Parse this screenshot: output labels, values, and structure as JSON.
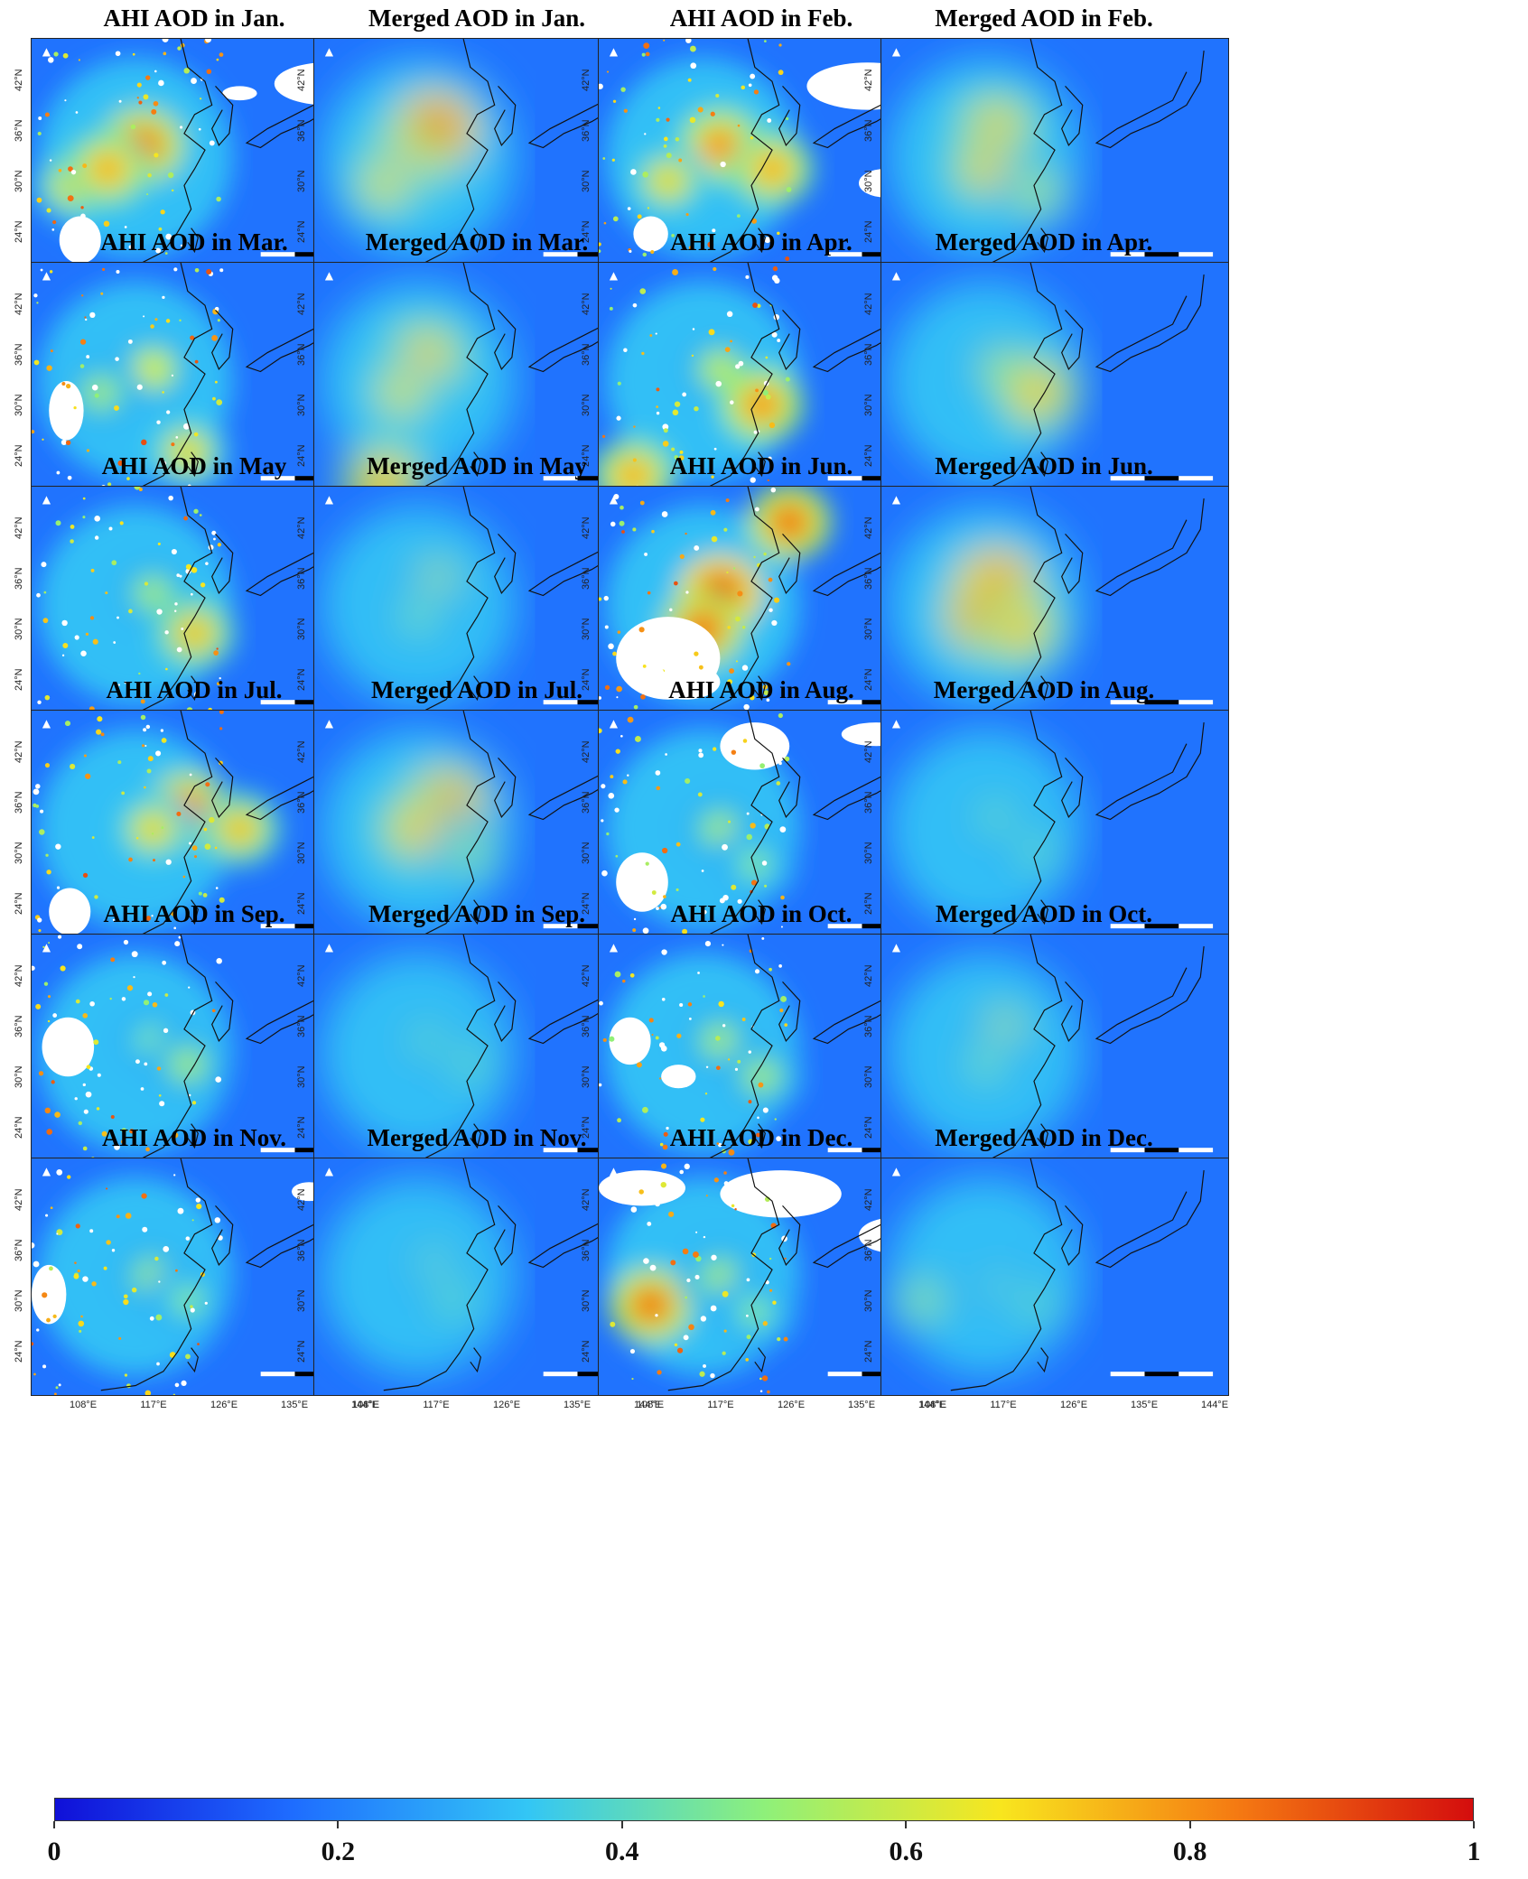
{
  "figure": {
    "panels": [
      {
        "title": "AHI AOD in Jan.",
        "kind": "ahi",
        "hot": [
          [
            0.32,
            0.45,
            0.9
          ],
          [
            0.12,
            0.62,
            0.7
          ],
          [
            0.22,
            0.55,
            0.8
          ]
        ],
        "clouds": [
          [
            0.7,
            0.1,
            0.3,
            0.18
          ],
          [
            0.08,
            0.75,
            0.12,
            0.2
          ],
          [
            0.55,
            0.2,
            0.1,
            0.06
          ]
        ]
      },
      {
        "title": "Merged AOD in Jan.",
        "kind": "merged",
        "hot": [
          [
            0.35,
            0.38,
            1.0
          ],
          [
            0.26,
            0.52,
            0.85
          ],
          [
            0.2,
            0.62,
            0.7
          ]
        ],
        "clouds": []
      },
      {
        "title": "AHI AOD in Feb.",
        "kind": "ahi",
        "hot": [
          [
            0.35,
            0.45,
            0.85
          ],
          [
            0.5,
            0.55,
            0.8
          ],
          [
            0.2,
            0.6,
            0.7
          ]
        ],
        "clouds": [
          [
            0.6,
            0.1,
            0.35,
            0.2
          ],
          [
            0.1,
            0.75,
            0.1,
            0.15
          ],
          [
            0.75,
            0.55,
            0.15,
            0.12
          ]
        ]
      },
      {
        "title": "Merged AOD in Feb.",
        "kind": "merged",
        "hot": [
          [
            0.33,
            0.38,
            0.8
          ],
          [
            0.3,
            0.55,
            0.75
          ],
          [
            0.45,
            0.65,
            0.6
          ]
        ],
        "clouds": []
      },
      {
        "title": "AHI AOD in Mar.",
        "kind": "ahi",
        "hot": [
          [
            0.35,
            0.45,
            0.65
          ],
          [
            0.45,
            0.8,
            0.7
          ],
          [
            0.2,
            0.55,
            0.55
          ]
        ],
        "clouds": [
          [
            0.05,
            0.5,
            0.1,
            0.25
          ],
          [
            0.85,
            0.15,
            0.1,
            0.1
          ]
        ]
      },
      {
        "title": "Merged AOD in Mar.",
        "kind": "merged",
        "hot": [
          [
            0.32,
            0.4,
            0.8
          ],
          [
            0.25,
            0.55,
            0.7
          ],
          [
            0.2,
            0.93,
            0.85
          ]
        ],
        "clouds": []
      },
      {
        "title": "AHI AOD in Apr.",
        "kind": "ahi",
        "hot": [
          [
            0.35,
            0.45,
            0.6
          ],
          [
            0.47,
            0.6,
            0.85
          ],
          [
            0.1,
            0.9,
            0.8
          ]
        ],
        "clouds": []
      },
      {
        "title": "Merged AOD in Apr.",
        "kind": "merged",
        "hot": [
          [
            0.35,
            0.45,
            0.6
          ],
          [
            0.45,
            0.55,
            0.8
          ]
        ],
        "clouds": []
      },
      {
        "title": "AHI AOD in May",
        "kind": "ahi",
        "hot": [
          [
            0.35,
            0.45,
            0.55
          ],
          [
            0.47,
            0.62,
            0.75
          ]
        ],
        "clouds": []
      },
      {
        "title": "Merged AOD in May",
        "kind": "merged",
        "hot": [
          [
            0.35,
            0.4,
            0.6
          ],
          [
            0.3,
            0.55,
            0.5
          ]
        ],
        "clouds": []
      },
      {
        "title": "AHI AOD in Jun.",
        "kind": "ahi",
        "hot": [
          [
            0.35,
            0.45,
            1.0
          ],
          [
            0.55,
            0.15,
            0.9
          ],
          [
            0.3,
            0.6,
            0.9
          ]
        ],
        "clouds": [
          [
            0.05,
            0.55,
            0.3,
            0.35
          ],
          [
            0.15,
            0.75,
            0.2,
            0.15
          ]
        ]
      },
      {
        "title": "Merged AOD in Jun.",
        "kind": "merged",
        "hot": [
          [
            0.33,
            0.42,
            1.0
          ],
          [
            0.3,
            0.55,
            0.95
          ],
          [
            0.4,
            0.6,
            0.8
          ]
        ],
        "clouds": []
      },
      {
        "title": "AHI AOD in Jul.",
        "kind": "ahi",
        "hot": [
          [
            0.45,
            0.42,
            0.9
          ],
          [
            0.35,
            0.5,
            0.7
          ],
          [
            0.6,
            0.5,
            0.75
          ]
        ],
        "clouds": [
          [
            0.05,
            0.75,
            0.12,
            0.2
          ]
        ]
      },
      {
        "title": "Merged AOD in Jul.",
        "kind": "merged",
        "hot": [
          [
            0.38,
            0.4,
            0.95
          ],
          [
            0.3,
            0.5,
            0.8
          ],
          [
            0.45,
            0.6,
            0.55
          ]
        ],
        "clouds": []
      },
      {
        "title": "AHI AOD in Aug.",
        "kind": "ahi",
        "hot": [
          [
            0.35,
            0.5,
            0.55
          ],
          [
            0.45,
            0.65,
            0.5
          ]
        ],
        "clouds": [
          [
            0.05,
            0.6,
            0.15,
            0.25
          ],
          [
            0.35,
            0.05,
            0.2,
            0.2
          ],
          [
            0.7,
            0.05,
            0.2,
            0.1
          ]
        ]
      },
      {
        "title": "Merged AOD in Aug.",
        "kind": "merged",
        "hot": [
          [
            0.33,
            0.45,
            0.45
          ],
          [
            0.45,
            0.6,
            0.45
          ]
        ],
        "clouds": []
      },
      {
        "title": "AHI AOD in Sep.",
        "kind": "ahi",
        "hot": [
          [
            0.35,
            0.45,
            0.5
          ],
          [
            0.45,
            0.55,
            0.55
          ]
        ],
        "clouds": [
          [
            0.03,
            0.35,
            0.15,
            0.25
          ]
        ]
      },
      {
        "title": "Merged AOD in Sep.",
        "kind": "merged",
        "hot": [
          [
            0.33,
            0.45,
            0.45
          ],
          [
            0.45,
            0.55,
            0.45
          ]
        ],
        "clouds": []
      },
      {
        "title": "AHI AOD in Oct.",
        "kind": "ahi",
        "hot": [
          [
            0.35,
            0.45,
            0.55
          ],
          [
            0.47,
            0.6,
            0.55
          ]
        ],
        "clouds": [
          [
            0.03,
            0.35,
            0.12,
            0.2
          ],
          [
            0.18,
            0.55,
            0.1,
            0.1
          ]
        ]
      },
      {
        "title": "Merged AOD in Oct.",
        "kind": "merged",
        "hot": [
          [
            0.35,
            0.4,
            0.6
          ],
          [
            0.3,
            0.55,
            0.5
          ]
        ],
        "clouds": []
      },
      {
        "title": "AHI AOD in Nov.",
        "kind": "ahi",
        "hot": [
          [
            0.35,
            0.5,
            0.55
          ],
          [
            0.45,
            0.6,
            0.5
          ]
        ],
        "clouds": [
          [
            0.0,
            0.45,
            0.1,
            0.25
          ],
          [
            0.75,
            0.1,
            0.1,
            0.08
          ]
        ]
      },
      {
        "title": "Merged AOD in Nov.",
        "kind": "merged",
        "hot": [
          [
            0.35,
            0.45,
            0.5
          ],
          [
            0.4,
            0.6,
            0.45
          ]
        ],
        "clouds": []
      },
      {
        "title": "AHI AOD in Dec.",
        "kind": "ahi",
        "hot": [
          [
            0.15,
            0.62,
            0.9
          ],
          [
            0.35,
            0.5,
            0.55
          ],
          [
            0.45,
            0.65,
            0.5
          ]
        ],
        "clouds": [
          [
            0.35,
            0.05,
            0.35,
            0.2
          ],
          [
            0.75,
            0.25,
            0.2,
            0.15
          ],
          [
            0.0,
            0.05,
            0.25,
            0.15
          ]
        ]
      },
      {
        "title": "Merged AOD in Dec.",
        "kind": "merged",
        "hot": [
          [
            0.12,
            0.6,
            0.55
          ],
          [
            0.35,
            0.55,
            0.5
          ],
          [
            0.45,
            0.62,
            0.45
          ]
        ],
        "clouds": []
      }
    ],
    "lat_ticks": [
      "24°N",
      "30°N",
      "36°N",
      "42°N"
    ],
    "lon_ticks": [
      "108°E",
      "117°E",
      "126°E",
      "135°E",
      "144°E"
    ],
    "colorbar": {
      "ticks": [
        "0",
        "0.2",
        "0.4",
        "0.6",
        "0.8",
        "1"
      ],
      "range": [
        0,
        1
      ],
      "colors": [
        "#1010d8",
        "#1e6cff",
        "#33c6f5",
        "#8ef07a",
        "#f8e61e",
        "#f57a12",
        "#d40d0d"
      ]
    }
  }
}
